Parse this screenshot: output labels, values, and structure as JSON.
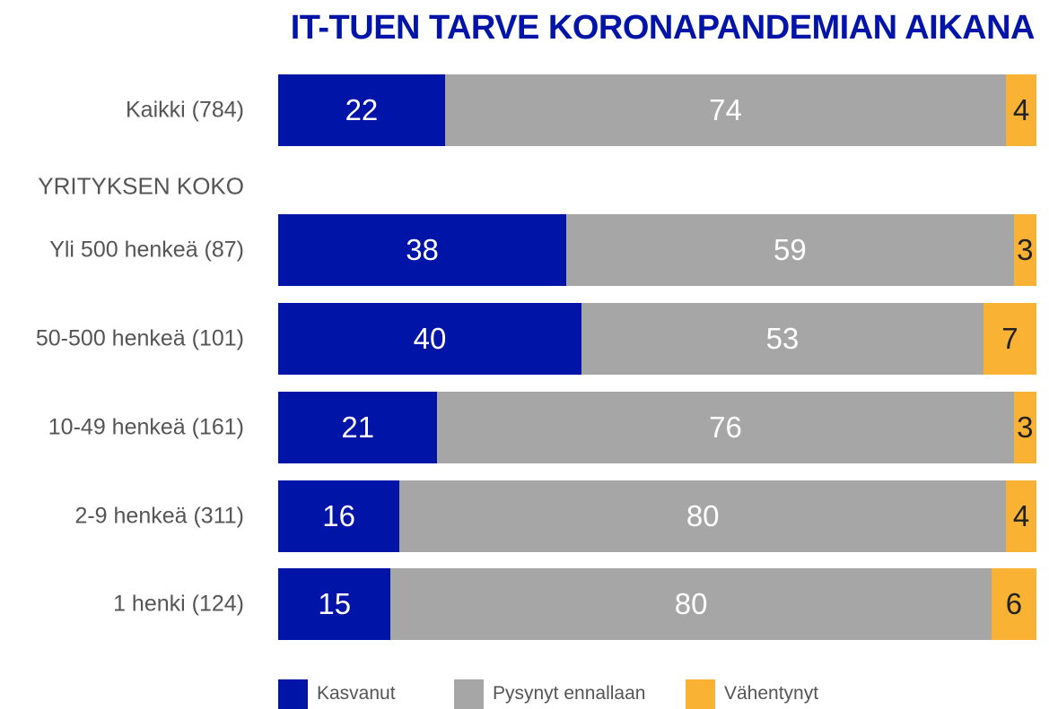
{
  "chart_data": {
    "type": "bar",
    "orientation": "horizontal",
    "stacked": "100%",
    "title": "IT-TUEN TARVE KORONAPANDEMIAN AIKANA",
    "group_label": "YRITYKSEN KOKO",
    "categories": [
      "Kaikki (784)",
      "Yli 500 henkeä (87)",
      "50-500 henkeä (101)",
      "10-49 henkeä (161)",
      "2-9 henkeä (311)",
      "1 henki  (124)"
    ],
    "series": [
      {
        "name": "Kasvanut",
        "color": "#0014a8",
        "label_color": "#ffffff",
        "values": [
          22,
          38,
          40,
          21,
          16,
          15
        ]
      },
      {
        "name": "Pysynyt ennallaan",
        "color": "#a6a6a6",
        "label_color": "#ffffff",
        "values": [
          74,
          59,
          53,
          76,
          80,
          80
        ]
      },
      {
        "name": "Vähentynyt",
        "color": "#f9b233",
        "label_color": "#222222",
        "values": [
          4,
          3,
          7,
          3,
          4,
          6
        ]
      }
    ],
    "xlim": [
      0,
      100
    ],
    "legend_position": "bottom",
    "grid": false
  }
}
